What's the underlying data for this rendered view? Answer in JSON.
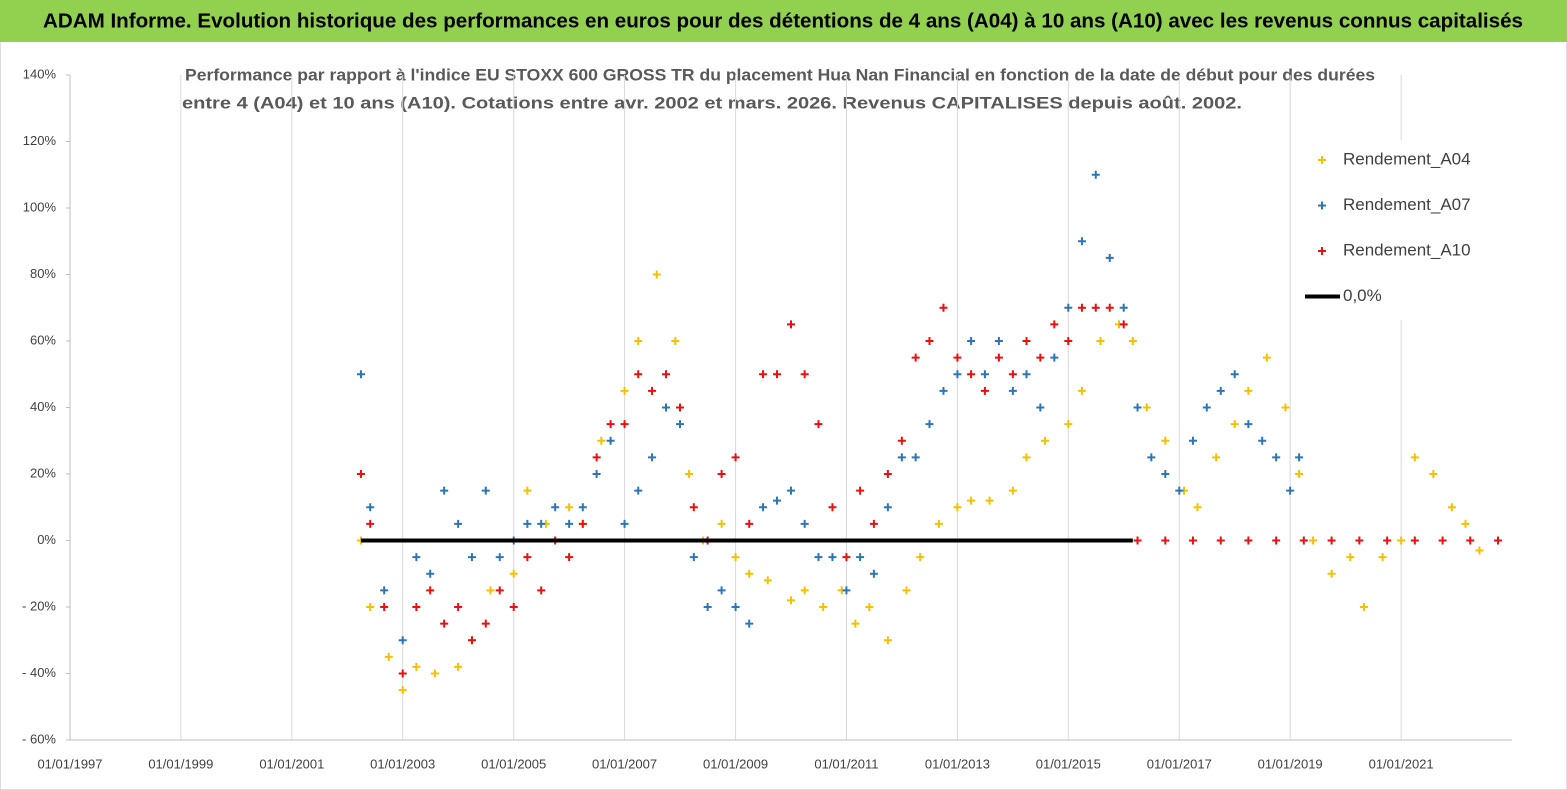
{
  "chart_data": {
    "type": "scatter",
    "title": "ADAM Informe. Evolution historique des performances en euros pour des détentions de 4 ans (A04) à 10 ans (A10) avec les revenus connus capitalisés",
    "subtitle": [
      "Performance par rapport à l'indice EU STOXX 600 GROSS TR  du placement Hua Nan Financial  en fonction de la date de début pour des durées",
      "entre 4 (A04) et 10 ans (A10). Cotations entre avr. 2002 et mars. 2026. Revenus CAPITALISES depuis août. 2002."
    ],
    "xlim": [
      "1997-01-01",
      "2023-01-01"
    ],
    "xticks": [
      {
        "value": "1997-01-01",
        "label": "01/01/1997"
      },
      {
        "value": "1999-01-01",
        "label": "01/01/1999"
      },
      {
        "value": "2001-01-01",
        "label": "01/01/2001"
      },
      {
        "value": "2003-01-01",
        "label": "01/01/2003"
      },
      {
        "value": "2005-01-01",
        "label": "01/01/2005"
      },
      {
        "value": "2007-01-01",
        "label": "01/01/2007"
      },
      {
        "value": "2009-01-01",
        "label": "01/01/2009"
      },
      {
        "value": "2011-01-01",
        "label": "01/01/2011"
      },
      {
        "value": "2013-01-01",
        "label": "01/01/2013"
      },
      {
        "value": "2015-01-01",
        "label": "01/01/2015"
      },
      {
        "value": "2017-01-01",
        "label": "01/01/2017"
      },
      {
        "value": "2019-01-01",
        "label": "01/01/2019"
      },
      {
        "value": "2021-01-01",
        "label": "01/01/2021"
      }
    ],
    "ylim": [
      -60,
      140
    ],
    "yticks": [
      {
        "value": -60,
        "label": "- 60%"
      },
      {
        "value": -40,
        "label": "- 40%"
      },
      {
        "value": -20,
        "label": "- 20%"
      },
      {
        "value": 0,
        "label": "0%"
      },
      {
        "value": 20,
        "label": "20%"
      },
      {
        "value": 40,
        "label": "40%"
      },
      {
        "value": 60,
        "label": "60%"
      },
      {
        "value": 80,
        "label": "80%"
      },
      {
        "value": 100,
        "label": "100%"
      },
      {
        "value": 120,
        "label": "120%"
      },
      {
        "value": 140,
        "label": "140%"
      }
    ],
    "grid": "x",
    "legend": "upper right",
    "series": [
      {
        "name": "Rendement_A04",
        "color": "#f5c000",
        "style": "marker",
        "x": [
          "2002-04-01",
          "2002-06-01",
          "2002-10-01",
          "2003-01-01",
          "2003-04-01",
          "2003-08-01",
          "2004-01-01",
          "2004-04-01",
          "2004-08-01",
          "2005-01-01",
          "2005-04-01",
          "2005-08-01",
          "2006-01-01",
          "2006-04-01",
          "2006-08-01",
          "2007-01-01",
          "2007-04-01",
          "2007-08-01",
          "2007-12-01",
          "2008-03-01",
          "2008-06-01",
          "2008-10-01",
          "2009-01-01",
          "2009-04-01",
          "2009-08-01",
          "2010-01-01",
          "2010-04-01",
          "2010-08-01",
          "2010-12-01",
          "2011-03-01",
          "2011-06-01",
          "2011-10-01",
          "2012-02-01",
          "2012-05-01",
          "2012-09-01",
          "2013-01-01",
          "2013-04-01",
          "2013-08-01",
          "2014-01-01",
          "2014-04-01",
          "2014-08-01",
          "2015-01-01",
          "2015-04-01",
          "2015-08-01",
          "2015-12-01",
          "2016-03-01",
          "2016-06-01",
          "2016-10-01",
          "2017-02-01",
          "2017-05-01",
          "2017-09-01",
          "2018-01-01",
          "2018-04-01",
          "2018-08-01",
          "2018-12-01",
          "2019-03-01",
          "2019-06-01",
          "2019-10-01",
          "2020-02-01",
          "2020-05-01",
          "2020-09-01",
          "2021-01-01",
          "2021-04-01",
          "2021-08-01",
          "2021-12-01",
          "2022-03-01",
          "2022-06-01",
          "2022-10-01"
        ],
        "values": [
          0,
          -20,
          -35,
          -45,
          -38,
          -40,
          -38,
          -30,
          -15,
          -10,
          15,
          5,
          10,
          5,
          30,
          45,
          60,
          80,
          60,
          20,
          0,
          5,
          -5,
          -10,
          -12,
          -18,
          -15,
          -20,
          -15,
          -25,
          -20,
          -30,
          -15,
          -5,
          5,
          10,
          12,
          12,
          15,
          25,
          30,
          35,
          45,
          60,
          65,
          60,
          40,
          30,
          15,
          10,
          25,
          35,
          45,
          55,
          40,
          20,
          0,
          -10,
          -5,
          -20,
          -5,
          0,
          25,
          20,
          10,
          5,
          -3,
          0
        ]
      },
      {
        "name": "Rendement_A07",
        "color": "#2e75b6",
        "style": "marker",
        "x": [
          "2002-04-01",
          "2002-06-01",
          "2002-09-01",
          "2003-01-01",
          "2003-04-01",
          "2003-07-01",
          "2003-10-01",
          "2004-01-01",
          "2004-04-01",
          "2004-07-01",
          "2004-10-01",
          "2005-01-01",
          "2005-04-01",
          "2005-07-01",
          "2005-10-01",
          "2006-01-01",
          "2006-04-01",
          "2006-07-01",
          "2006-10-01",
          "2007-01-01",
          "2007-04-01",
          "2007-07-01",
          "2007-10-01",
          "2008-01-01",
          "2008-04-01",
          "2008-07-01",
          "2008-10-01",
          "2009-01-01",
          "2009-04-01",
          "2009-07-01",
          "2009-10-01",
          "2010-01-01",
          "2010-04-01",
          "2010-07-01",
          "2010-10-01",
          "2011-01-01",
          "2011-04-01",
          "2011-07-01",
          "2011-10-01",
          "2012-01-01",
          "2012-04-01",
          "2012-07-01",
          "2012-10-01",
          "2013-01-01",
          "2013-04-01",
          "2013-07-01",
          "2013-10-01",
          "2014-01-01",
          "2014-04-01",
          "2014-07-01",
          "2014-10-01",
          "2015-01-01",
          "2015-04-01",
          "2015-07-01",
          "2015-10-01",
          "2016-01-01",
          "2016-04-01",
          "2016-07-01",
          "2016-10-01",
          "2017-01-01",
          "2017-04-01",
          "2017-07-01",
          "2017-10-01",
          "2018-01-01",
          "2018-04-01",
          "2018-07-01",
          "2018-10-01",
          "2019-01-01",
          "2019-03-01"
        ],
        "values": [
          50,
          10,
          -15,
          -30,
          -5,
          -10,
          15,
          5,
          -5,
          15,
          -5,
          0,
          5,
          5,
          10,
          5,
          10,
          20,
          30,
          5,
          15,
          25,
          40,
          35,
          -5,
          -20,
          -15,
          -20,
          -25,
          10,
          12,
          15,
          5,
          -5,
          -5,
          -15,
          -5,
          -10,
          10,
          25,
          25,
          35,
          45,
          50,
          60,
          50,
          60,
          45,
          50,
          40,
          55,
          70,
          90,
          110,
          85,
          70,
          40,
          25,
          20,
          15,
          30,
          40,
          45,
          50,
          35,
          30,
          25,
          15,
          25
        ]
      },
      {
        "name": "Rendement_A10",
        "color": "#e81010",
        "style": "marker",
        "x": [
          "2002-04-01",
          "2002-06-01",
          "2002-09-01",
          "2003-01-01",
          "2003-04-01",
          "2003-07-01",
          "2003-10-01",
          "2004-01-01",
          "2004-04-01",
          "2004-07-01",
          "2004-10-01",
          "2005-01-01",
          "2005-04-01",
          "2005-07-01",
          "2005-10-01",
          "2006-01-01",
          "2006-04-01",
          "2006-07-01",
          "2006-10-01",
          "2007-01-01",
          "2007-04-01",
          "2007-07-01",
          "2007-10-01",
          "2008-01-01",
          "2008-04-01",
          "2008-07-01",
          "2008-10-01",
          "2009-01-01",
          "2009-04-01",
          "2009-07-01",
          "2009-10-01",
          "2010-01-01",
          "2010-04-01",
          "2010-07-01",
          "2010-10-01",
          "2011-01-01",
          "2011-04-01",
          "2011-07-01",
          "2011-10-01",
          "2012-01-01",
          "2012-04-01",
          "2012-07-01",
          "2012-10-01",
          "2013-01-01",
          "2013-04-01",
          "2013-07-01",
          "2013-10-01",
          "2014-01-01",
          "2014-04-01",
          "2014-07-01",
          "2014-10-01",
          "2015-01-01",
          "2015-04-01",
          "2015-07-01",
          "2015-10-01",
          "2016-01-01",
          "2016-04-01",
          "2016-10-01",
          "2017-04-01",
          "2017-10-01",
          "2018-04-01",
          "2018-10-01",
          "2019-04-01",
          "2019-10-01",
          "2020-04-01",
          "2020-10-01",
          "2021-04-01",
          "2021-10-01",
          "2022-04-01",
          "2022-10-01"
        ],
        "values": [
          20,
          5,
          -20,
          -40,
          -20,
          -15,
          -25,
          -20,
          -30,
          -25,
          -15,
          -20,
          -5,
          -15,
          0,
          -5,
          5,
          25,
          35,
          35,
          50,
          45,
          50,
          40,
          10,
          0,
          20,
          25,
          5,
          50,
          50,
          65,
          50,
          35,
          10,
          -5,
          15,
          5,
          20,
          30,
          55,
          60,
          70,
          55,
          50,
          45,
          55,
          50,
          60,
          55,
          65,
          60,
          70,
          70,
          70,
          65,
          0,
          0,
          0,
          0,
          0,
          0,
          0,
          0,
          0,
          0,
          0,
          0,
          0,
          0
        ]
      },
      {
        "name": "0,0%",
        "color": "#000000",
        "style": "line",
        "x": [
          "2002-04-01",
          "2016-03-01"
        ],
        "values": [
          0,
          0
        ]
      }
    ]
  }
}
